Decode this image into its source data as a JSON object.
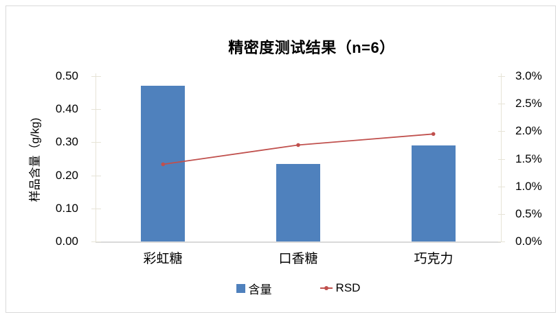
{
  "chart_data": {
    "type": "bar",
    "title": "精密度测试结果（n=6）",
    "categories": [
      "彩虹糖",
      "口香糖",
      "巧克力"
    ],
    "series": [
      {
        "name": "含量",
        "type": "bar",
        "yaxis": "left",
        "values": [
          0.47,
          0.235,
          0.29
        ],
        "unit": "g/kg",
        "color": "#4F81BD"
      },
      {
        "name": "RSD",
        "type": "line",
        "yaxis": "right",
        "values": [
          1.4,
          1.75,
          1.95
        ],
        "unit": "%",
        "color": "#C0504D"
      }
    ],
    "left_axis": {
      "label": "样品含量（g/kg)",
      "min": 0,
      "max": 0.5,
      "step": 0.1,
      "ticks": [
        "0.00",
        "0.10",
        "0.20",
        "0.30",
        "0.40",
        "0.50"
      ]
    },
    "right_axis": {
      "label": "",
      "min": 0,
      "max": 3,
      "step": 0.5,
      "unit": "%",
      "ticks": [
        "0.0%",
        "0.5%",
        "1.0%",
        "1.5%",
        "2.0%",
        "2.5%",
        "3.0%"
      ]
    },
    "legend": {
      "position": "bottom",
      "items": [
        "含量",
        "RSD"
      ]
    },
    "grid": false,
    "colors": {
      "bar": "#4F81BD",
      "line": "#C0504D",
      "axis": "#E6E3D6",
      "baseline": "#D9D9D9",
      "frame_border": "#D9D9D9"
    }
  }
}
